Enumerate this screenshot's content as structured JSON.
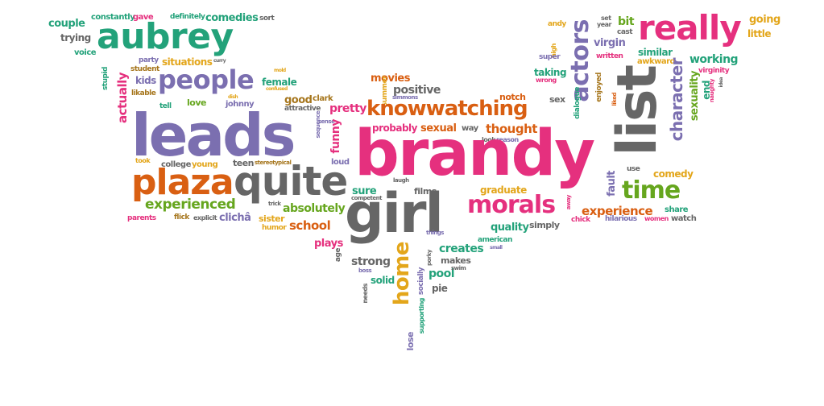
{
  "palette": {
    "purple": "#7b6fb0",
    "pink": "#e5307e",
    "teal": "#23a27a",
    "orange": "#d95f12",
    "gray": "#666666",
    "green": "#66a61e",
    "gold": "#e3a61b",
    "brown": "#a6761d"
  },
  "words": {
    "brandy": "brandy",
    "leads": "leads",
    "list": "list",
    "girl": "girl",
    "quite": "quite",
    "plaza": "plaza",
    "aubrey": "aubrey",
    "really": "really",
    "people": "people",
    "actors": "actors",
    "knowwatching": "knowwatching",
    "morals": "morals",
    "time": "time",
    "home": "home",
    "character": "character",
    "experienced": "experienced",
    "experience": "experience",
    "couple": "couple",
    "constantly": "constantly",
    "gave": "gave",
    "definitely": "definitely",
    "comedies": "comedies",
    "sort": "sort",
    "trying": "trying",
    "voice": "voice",
    "party": "party",
    "situations": "situations",
    "curry": "curry",
    "student": "student",
    "kids": "kids",
    "stupid": "stupid",
    "actually": "actually",
    "likable": "likable",
    "mold": "mold",
    "female": "female",
    "confused": "confused",
    "good": "good",
    "clark": "clark",
    "attractive": "attractive",
    "pretty": "pretty",
    "love": "love",
    "tell": "tell",
    "johnny": "johnny",
    "dish": "dish",
    "movies": "movies",
    "positive": "positive",
    "summer": "summer",
    "simmons": "simmons",
    "notch": "notch",
    "taking": "taking",
    "wrong": "wrong",
    "thought": "thought",
    "probably": "probably",
    "sexual": "sexual",
    "way": "way",
    "look": "look",
    "reason": "reason",
    "sex": "sex",
    "funny": "funny",
    "sense": "sense",
    "college": "college",
    "young": "young",
    "took": "took",
    "teen": "teen",
    "stereotypical": "stereotypical",
    "sequence": "sequence",
    "loud": "loud",
    "laugh": "laugh",
    "sure": "sure",
    "competent": "competent",
    "films": "films",
    "graduate": "graduate",
    "absolutely": "absolutely",
    "trick": "trick",
    "sister": "sister",
    "humor": "humor",
    "school": "school",
    "parents": "parents",
    "flick": "flick",
    "explicit": "explicit",
    "cliche": "clichâ",
    "plays": "plays",
    "age": "age",
    "strong": "strong",
    "solid": "solid",
    "boss": "boss",
    "needs": "needs",
    "lose": "lose",
    "supporting": "supporting",
    "socially": "socially",
    "porky": "porky",
    "pool": "pool",
    "pie": "pie",
    "swim": "swim",
    "makes": "makes",
    "creates": "creates",
    "things": "things",
    "quality": "quality",
    "simply": "simply",
    "american": "american",
    "small": "small",
    "andy": "andy",
    "set": "set",
    "year": "year",
    "bit": "bit",
    "cast": "cast",
    "virgin": "virgin",
    "written": "written",
    "super": "super",
    "high": "high",
    "similar": "similar",
    "awkward": "awkward",
    "working": "working",
    "virginity": "virginity",
    "going": "going",
    "little": "little",
    "enjoyed": "enjoyed",
    "dialogue": "dialogue",
    "liked": "liked",
    "sexuality": "sexuality",
    "end": "end",
    "naughty": "naughty",
    "idea": "idea",
    "fault": "fault",
    "use": "use",
    "comedy": "comedy",
    "away": "away",
    "chick": "chick",
    "hilarious": "hilarious",
    "women": "women",
    "share": "share",
    "watch": "watch"
  }
}
